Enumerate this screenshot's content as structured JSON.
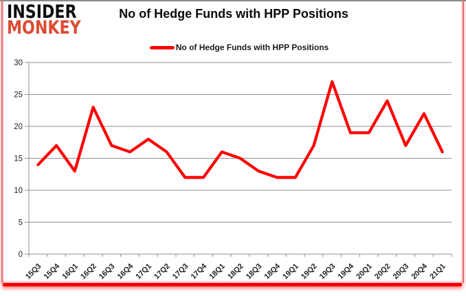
{
  "logo": {
    "line1": "INSIDER",
    "line2": "MONKEY"
  },
  "title": "No of Hedge Funds with HPP Positions",
  "legend": {
    "label": "No of Hedge Funds with HPP Positions"
  },
  "colors": {
    "line": "#fe0000",
    "logo_black": "#0d0d0d",
    "logo_red": "#dc4b33",
    "grid": "#8e8e8e",
    "axis_text": "#1f1f1f",
    "frame_red": "#f40000"
  },
  "chart_data": {
    "type": "line",
    "title": "No of Hedge Funds with HPP Positions",
    "categories": [
      "15Q3",
      "15Q4",
      "16Q1",
      "16Q2",
      "16Q3",
      "16Q4",
      "17Q1",
      "17Q2",
      "17Q3",
      "17Q4",
      "18Q1",
      "18Q2",
      "18Q3",
      "18Q4",
      "19Q1",
      "19Q2",
      "19Q3",
      "19Q4",
      "20Q1",
      "20Q2",
      "20Q3",
      "20Q4",
      "21Q1"
    ],
    "series": [
      {
        "name": "No of Hedge Funds with HPP Positions",
        "color": "#fe0000",
        "values": [
          14,
          17,
          13,
          23,
          17,
          16,
          18,
          16,
          12,
          12,
          16,
          15,
          13,
          12,
          12,
          17,
          27,
          19,
          19,
          24,
          17,
          22,
          16
        ]
      }
    ],
    "xlabel": "",
    "ylabel": "",
    "ylim": [
      0,
      30
    ],
    "yticks": [
      0,
      5,
      10,
      15,
      20,
      25,
      30
    ],
    "grid": true,
    "legend_position": "top-center",
    "x_tick_rotation": -45
  }
}
